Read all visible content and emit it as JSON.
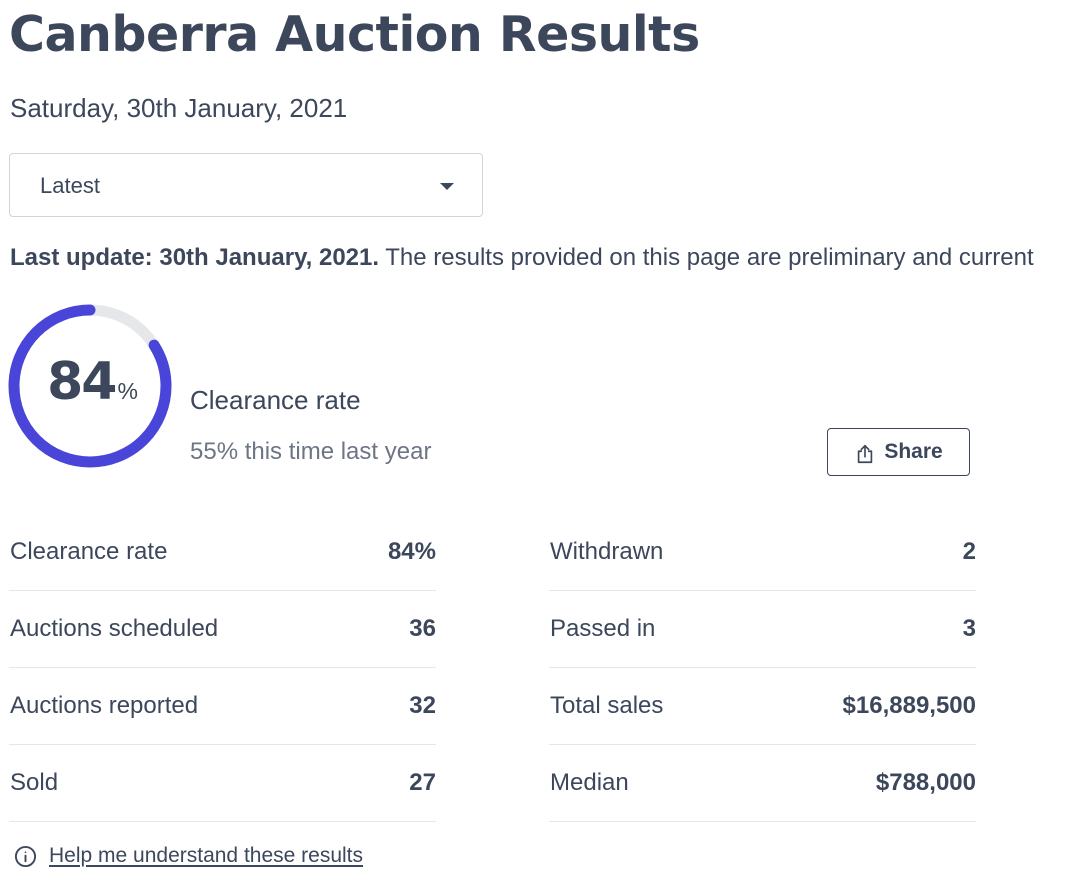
{
  "header": {
    "title": "Canberra Auction Results",
    "date": "Saturday, 30th January, 2021"
  },
  "period_select": {
    "value": "Latest",
    "icon": "chevron-down-icon"
  },
  "update": {
    "label": "Last update: 30th January, 2021.",
    "text": " The results provided on this page are preliminary and current"
  },
  "clearance": {
    "rate": 84,
    "rate_display": "84",
    "unit": "%",
    "title": "Clearance rate",
    "comparison": "55% this time last year",
    "ring_color": "#4a45d9",
    "track_color": "#e5e7eb"
  },
  "share": {
    "label": "Share",
    "icon": "share-icon"
  },
  "stats": {
    "left": [
      {
        "label": "Clearance rate",
        "value": "84%"
      },
      {
        "label": "Auctions scheduled",
        "value": "36"
      },
      {
        "label": "Auctions reported",
        "value": "32"
      },
      {
        "label": "Sold",
        "value": "27"
      }
    ],
    "right": [
      {
        "label": "Withdrawn",
        "value": "2"
      },
      {
        "label": "Passed in",
        "value": "3"
      },
      {
        "label": "Total sales",
        "value": "$16,889,500"
      },
      {
        "label": "Median",
        "value": "$788,000"
      }
    ]
  },
  "help": {
    "label": "Help me understand these results",
    "icon": "info-icon"
  }
}
